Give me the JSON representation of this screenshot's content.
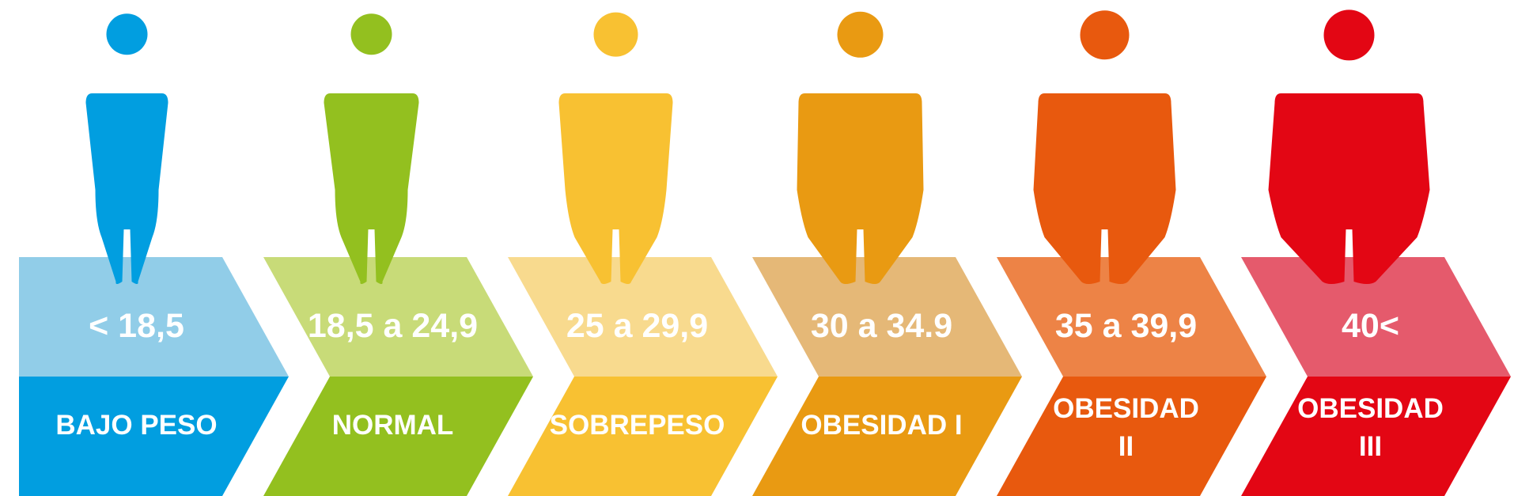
{
  "chart_data": {
    "type": "table",
    "categories": [
      {
        "range": "< 18,5",
        "label_lines": [
          "BAJO PESO"
        ],
        "color": "#019ee0",
        "light_color": "#91cde8"
      },
      {
        "range": "18,5 a 24,9",
        "label_lines": [
          "NORMAL"
        ],
        "color": "#93c01f",
        "light_color": "#c8db78"
      },
      {
        "range": "25 a 29,9",
        "label_lines": [
          "SOBREPESO"
        ],
        "color": "#f8c132",
        "light_color": "#f8da8e"
      },
      {
        "range": "30 a 34.9",
        "label_lines": [
          "OBESIDAD I"
        ],
        "color": "#e99a12",
        "light_color": "#e5b877"
      },
      {
        "range": "35 a 39,9",
        "label_lines": [
          "OBESIDAD",
          "II"
        ],
        "color": "#e8590e",
        "light_color": "#ed8346"
      },
      {
        "range": "40<",
        "label_lines": [
          "OBESIDAD",
          "III"
        ],
        "color": "#e30614",
        "light_color": "#e55a6c"
      }
    ]
  },
  "icons": {
    "figure": "person-silhouette-icon"
  }
}
